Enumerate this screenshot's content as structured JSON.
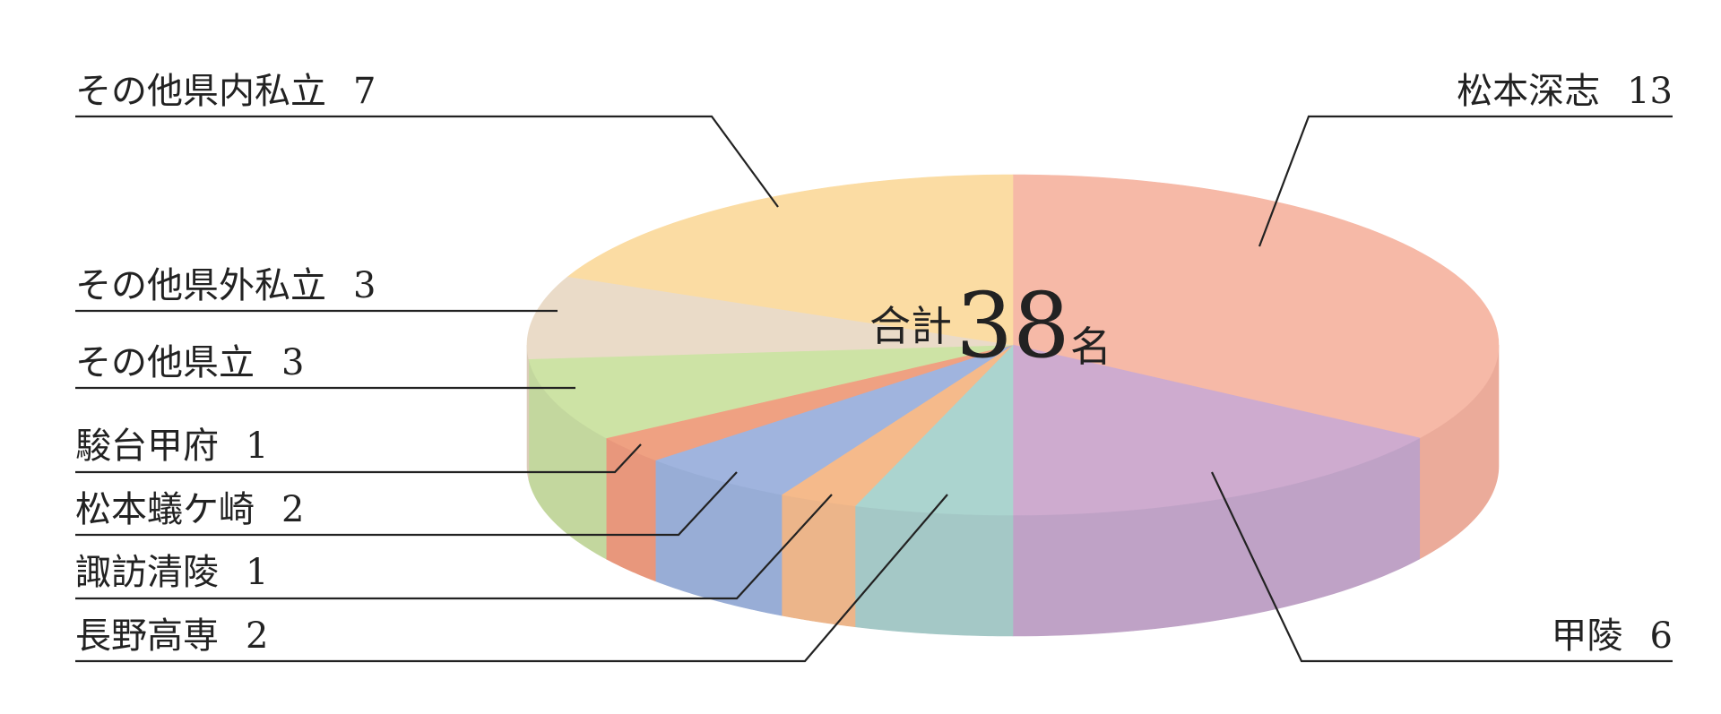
{
  "chart_data": {
    "type": "pie",
    "style": "3d",
    "start_angle": "12 o'clock",
    "direction": "clockwise",
    "legend": "none",
    "center_label": {
      "prefix": "合計",
      "value": "38",
      "suffix": "名"
    },
    "slices": [
      {
        "label": "松本深志",
        "value": 13,
        "display_value": "13",
        "color": "#F6B9A7",
        "side_color": "#EBAB9A"
      },
      {
        "label": "甲陵",
        "value": 6,
        "display_value": "6",
        "color": "#CEABCF",
        "side_color": "#BFA2C6"
      },
      {
        "label": "長野高専",
        "value": 2,
        "display_value": "2",
        "color": "#ABD4CF",
        "side_color": "#A4C8C6"
      },
      {
        "label": "諏訪清陵",
        "value": 1,
        "display_value": "1",
        "color": "#F5BA8B",
        "side_color": "#ECB58A"
      },
      {
        "label": "松本蟻ケ崎",
        "value": 2,
        "display_value": "2",
        "color": "#A0B4DE",
        "side_color": "#98ADD6"
      },
      {
        "label": "駿台甲府",
        "value": 1,
        "display_value": "1",
        "color": "#EFA182",
        "side_color": "#E8977C"
      },
      {
        "label": "その他県立",
        "value": 3,
        "display_value": "3",
        "color": "#CDE3A5",
        "side_color": "#C3D79E"
      },
      {
        "label": "その他県外私立",
        "value": 3,
        "display_value": "3",
        "color": "#EADBC8",
        "side_color": "#DDCCBB"
      },
      {
        "label": "その他県内私立",
        "value": 7,
        "display_value": "7",
        "color": "#FBDCA3",
        "side_color": "#F0D09A"
      }
    ]
  }
}
